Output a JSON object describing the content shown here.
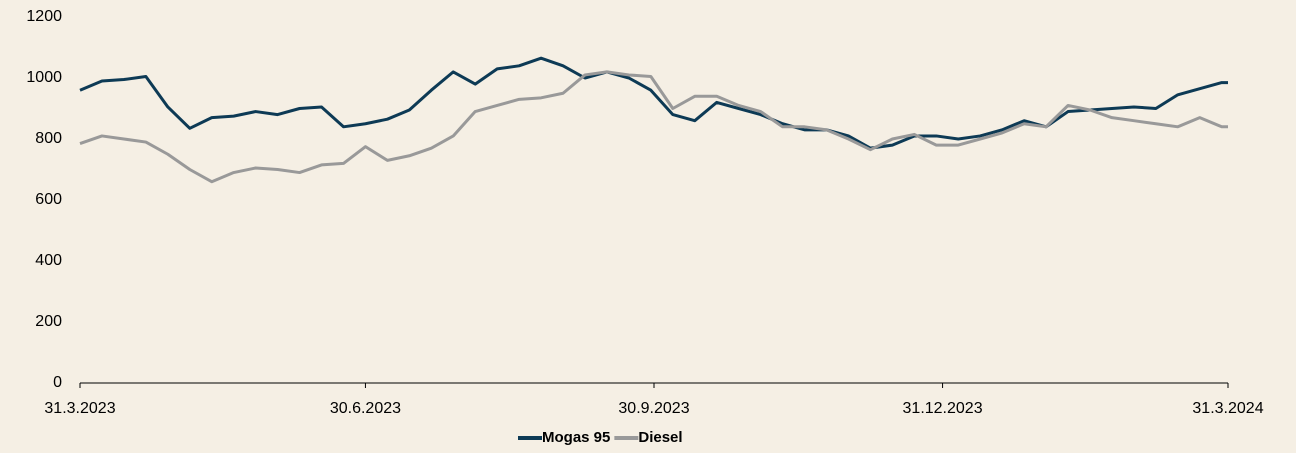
{
  "chart_data": {
    "type": "line",
    "x": [
      "31.3.2023",
      "7.4.2023",
      "14.4.2023",
      "21.4.2023",
      "28.4.2023",
      "5.5.2023",
      "12.5.2023",
      "19.5.2023",
      "26.5.2023",
      "2.6.2023",
      "9.6.2023",
      "16.6.2023",
      "23.6.2023",
      "30.6.2023",
      "7.7.2023",
      "14.7.2023",
      "21.7.2023",
      "28.7.2023",
      "4.8.2023",
      "11.8.2023",
      "18.8.2023",
      "25.8.2023",
      "1.9.2023",
      "8.9.2023",
      "15.9.2023",
      "22.9.2023",
      "29.9.2023",
      "6.10.2023",
      "13.10.2023",
      "20.10.2023",
      "27.10.2023",
      "3.11.2023",
      "10.11.2023",
      "17.11.2023",
      "24.11.2023",
      "1.12.2023",
      "8.12.2023",
      "15.12.2023",
      "22.12.2023",
      "29.12.2023",
      "5.1.2024",
      "12.1.2024",
      "19.1.2024",
      "26.1.2024",
      "2.2.2024",
      "9.2.2024",
      "16.2.2024",
      "23.2.2024",
      "1.3.2024",
      "8.3.2024",
      "15.3.2024",
      "22.3.2024",
      "29.3.2024",
      "31.3.2024"
    ],
    "series": [
      {
        "name": "Mogas 95",
        "color": "#0d3a55",
        "values": [
          960,
          990,
          995,
          1005,
          905,
          835,
          870,
          875,
          890,
          880,
          900,
          905,
          840,
          850,
          865,
          895,
          960,
          1020,
          980,
          1030,
          1040,
          1065,
          1040,
          1000,
          1020,
          1000,
          960,
          880,
          860,
          920,
          900,
          880,
          850,
          830,
          830,
          810,
          770,
          780,
          810,
          810,
          800,
          810,
          830,
          860,
          840,
          890,
          895,
          900,
          905,
          900,
          945,
          965,
          985,
          985
        ]
      },
      {
        "name": "Diesel",
        "color": "#999999",
        "values": [
          785,
          810,
          800,
          790,
          750,
          700,
          660,
          690,
          705,
          700,
          690,
          715,
          720,
          775,
          730,
          745,
          770,
          810,
          890,
          910,
          930,
          935,
          950,
          1010,
          1020,
          1010,
          1005,
          900,
          940,
          940,
          910,
          890,
          840,
          840,
          830,
          800,
          765,
          800,
          815,
          780,
          780,
          800,
          820,
          850,
          840,
          910,
          895,
          870,
          860,
          850,
          840,
          870,
          840,
          840
        ]
      }
    ],
    "xlim": [
      "31.3.2023",
      "31.3.2024"
    ],
    "xticks": [
      "31.3.2023",
      "30.6.2023",
      "30.9.2023",
      "31.12.2023",
      "31.3.2024"
    ],
    "ylim": [
      0,
      1200
    ],
    "yticks": [
      0,
      200,
      400,
      600,
      800,
      1000,
      1200
    ],
    "legend": "bottom"
  }
}
